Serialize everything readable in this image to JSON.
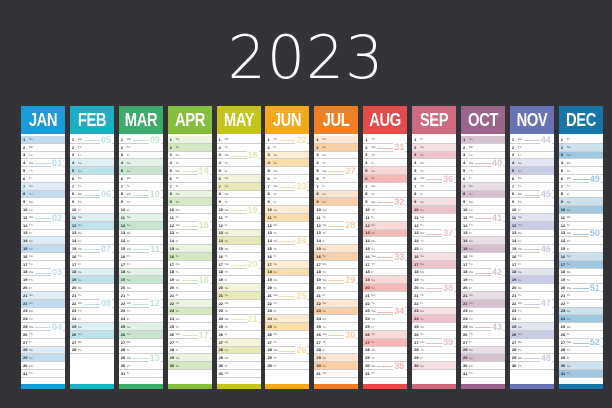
{
  "title": "2023",
  "months": [
    {
      "name": "JAN",
      "color": "#1a9bd7",
      "light": "#bfdcf0",
      "weeks": [
        {
          "n": "01",
          "day": 4
        },
        {
          "n": "02",
          "day": 11
        },
        {
          "n": "03",
          "day": 18
        },
        {
          "n": "04",
          "day": 25
        }
      ],
      "days": 31,
      "start": 0
    },
    {
      "name": "FEB",
      "color": "#1db0c4",
      "light": "#bde3ea",
      "weeks": [
        {
          "n": "05",
          "day": 1
        },
        {
          "n": "06",
          "day": 8
        },
        {
          "n": "07",
          "day": 15
        },
        {
          "n": "08",
          "day": 22
        }
      ],
      "days": 28,
      "start": 3
    },
    {
      "name": "MAR",
      "color": "#3dac6a",
      "light": "#c5e5cf",
      "weeks": [
        {
          "n": "09",
          "day": 1
        },
        {
          "n": "10",
          "day": 8
        },
        {
          "n": "11",
          "day": 15
        },
        {
          "n": "12",
          "day": 22
        },
        {
          "n": "13",
          "day": 29
        }
      ],
      "days": 31,
      "start": 3
    },
    {
      "name": "APR",
      "color": "#85bd3c",
      "light": "#d5e9c0",
      "weeks": [
        {
          "n": "14",
          "day": 5
        },
        {
          "n": "15",
          "day": 12
        },
        {
          "n": "16",
          "day": 19
        },
        {
          "n": "17",
          "day": 26
        }
      ],
      "days": 30,
      "start": 6
    },
    {
      "name": "MAY",
      "color": "#c4c41a",
      "light": "#e8e8b8",
      "weeks": [
        {
          "n": "18",
          "day": 3
        },
        {
          "n": "19",
          "day": 10
        },
        {
          "n": "20",
          "day": 17
        },
        {
          "n": "21",
          "day": 24
        }
      ],
      "days": 31,
      "start": 1
    },
    {
      "name": "JUN",
      "color": "#f4a81c",
      "light": "#fbdcab",
      "weeks": [
        {
          "n": "22",
          "day": 1
        },
        {
          "n": "23",
          "day": 7
        },
        {
          "n": "24",
          "day": 14
        },
        {
          "n": "25",
          "day": 21
        },
        {
          "n": "26",
          "day": 28
        }
      ],
      "days": 30,
      "start": 4
    },
    {
      "name": "JUL",
      "color": "#ee7f22",
      "light": "#f9cfa8",
      "weeks": [
        {
          "n": "27",
          "day": 5
        },
        {
          "n": "28",
          "day": 12
        },
        {
          "n": "29",
          "day": 19
        },
        {
          "n": "30",
          "day": 26
        }
      ],
      "days": 31,
      "start": 6
    },
    {
      "name": "AUG",
      "color": "#e64a4b",
      "light": "#f4b8b6",
      "weeks": [
        {
          "n": "31",
          "day": 2
        },
        {
          "n": "32",
          "day": 9
        },
        {
          "n": "33",
          "day": 16
        },
        {
          "n": "34",
          "day": 23
        },
        {
          "n": "35",
          "day": 30
        }
      ],
      "days": 31,
      "start": 2
    },
    {
      "name": "SEP",
      "color": "#cf6a80",
      "light": "#ecc3cb",
      "weeks": [
        {
          "n": "36",
          "day": 6
        },
        {
          "n": "37",
          "day": 13
        },
        {
          "n": "38",
          "day": 20
        },
        {
          "n": "39",
          "day": 27
        }
      ],
      "days": 30,
      "start": 5
    },
    {
      "name": "OCT",
      "color": "#9a648b",
      "light": "#d6c0d0",
      "weeks": [
        {
          "n": "40",
          "day": 4
        },
        {
          "n": "41",
          "day": 11
        },
        {
          "n": "42",
          "day": 18
        },
        {
          "n": "43",
          "day": 25
        }
      ],
      "days": 31,
      "start": 0
    },
    {
      "name": "NOV",
      "color": "#6a72b6",
      "light": "#c9cce6",
      "weeks": [
        {
          "n": "44",
          "day": 1
        },
        {
          "n": "45",
          "day": 8
        },
        {
          "n": "46",
          "day": 15
        },
        {
          "n": "47",
          "day": 22
        },
        {
          "n": "48",
          "day": 29
        }
      ],
      "days": 30,
      "start": 3
    },
    {
      "name": "DEC",
      "color": "#1676aa",
      "light": "#9fc7e0",
      "weeks": [
        {
          "n": "49",
          "day": 6
        },
        {
          "n": "50",
          "day": 13
        },
        {
          "n": "51",
          "day": 20
        },
        {
          "n": "52",
          "day": 27
        }
      ],
      "days": 31,
      "start": 5
    }
  ],
  "weekday_abbr": [
    "Su",
    "Mo",
    "Tu",
    "We",
    "Th",
    "Fr",
    "Sa"
  ]
}
